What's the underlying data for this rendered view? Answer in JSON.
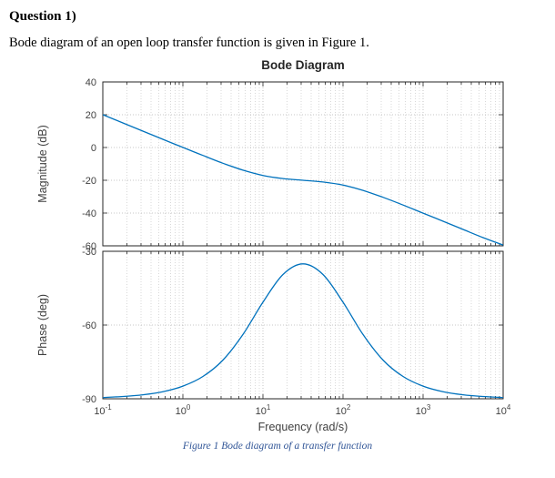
{
  "page": {
    "heading": "Question 1)",
    "intro": "Bode diagram of an open loop transfer function is given in Figure 1.",
    "caption": "Figure 1 Bode diagram of a transfer function"
  },
  "colors": {
    "line": "#0072bd",
    "caption": "#2f5496",
    "tick_text": "#3f3f3f",
    "axis_box": "#262626"
  },
  "chart_data": {
    "type": "line",
    "title": "Bode Diagram",
    "xlabel": "Frequency (rad/s)",
    "x_scale": "log",
    "x_range_log10": [
      -1,
      4
    ],
    "x_tick_exponents": [
      -1,
      0,
      1,
      2,
      3,
      4
    ],
    "line_color": "#0072bd",
    "grid": true,
    "legend": "none",
    "subplots": [
      {
        "name": "magnitude",
        "ylabel": "Magnitude (dB)",
        "ylim": [
          -60,
          40
        ],
        "yticks": [
          40,
          20,
          0,
          -20,
          -40,
          -60
        ],
        "series": {
          "x_log10": [
            -1,
            -0.75,
            -0.5,
            -0.25,
            0,
            0.25,
            0.5,
            0.75,
            1,
            1.25,
            1.5,
            1.75,
            2,
            2.25,
            2.5,
            2.75,
            3,
            3.25,
            3.5,
            3.75,
            4
          ],
          "y": [
            20.0,
            15.0,
            10.0,
            5.0,
            0.04,
            -4.86,
            -9.59,
            -13.81,
            -17.03,
            -18.94,
            -20.0,
            -21.06,
            -22.97,
            -26.18,
            -30.41,
            -35.13,
            -40.04,
            -45.01,
            -50.0,
            -55.0,
            -59.5
          ]
        }
      },
      {
        "name": "phase",
        "ylabel": "Phase (deg)",
        "ylim": [
          -90,
          -30
        ],
        "yticks": [
          -30,
          -60,
          -90
        ],
        "series": {
          "x_log10": [
            -1,
            -0.75,
            -0.5,
            -0.25,
            0,
            0.25,
            0.5,
            0.75,
            1,
            1.25,
            1.5,
            1.75,
            2,
            2.25,
            2.5,
            2.75,
            3,
            3.25,
            3.5,
            3.75,
            4
          ],
          "y": [
            -89.48,
            -89.08,
            -88.37,
            -87.1,
            -84.86,
            -80.94,
            -74.26,
            -63.87,
            -50.71,
            -39.44,
            -35.1,
            -39.43,
            -50.71,
            -63.86,
            -74.26,
            -80.94,
            -84.86,
            -87.1,
            -88.37,
            -89.08,
            -89.48
          ]
        }
      }
    ]
  }
}
